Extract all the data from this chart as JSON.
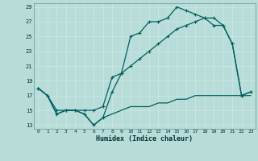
{
  "xlabel": "Humidex (Indice chaleur)",
  "xlim": [
    -0.5,
    23.5
  ],
  "ylim": [
    12.5,
    29.5
  ],
  "xticks": [
    0,
    1,
    2,
    3,
    4,
    5,
    6,
    7,
    8,
    9,
    10,
    11,
    12,
    13,
    14,
    15,
    16,
    17,
    18,
    19,
    20,
    21,
    22,
    23
  ],
  "yticks": [
    13,
    15,
    17,
    19,
    21,
    23,
    25,
    27,
    29
  ],
  "bg_color": "#b8dcd8",
  "grid_color": "#c8e8e4",
  "line_color": "#006060",
  "line1_x": [
    0,
    1,
    2,
    3,
    4,
    5,
    6,
    7,
    8,
    9,
    10,
    11,
    12,
    13,
    14,
    15,
    16,
    17,
    18,
    19,
    20,
    21,
    22,
    23
  ],
  "line1_y": [
    18.0,
    17.0,
    14.5,
    15.0,
    15.0,
    14.5,
    13.0,
    14.0,
    17.5,
    20.0,
    25.0,
    25.5,
    27.0,
    27.0,
    27.5,
    29.0,
    28.5,
    28.0,
    27.5,
    27.5,
    26.5,
    24.0,
    17.0,
    17.5
  ],
  "line2_x": [
    0,
    1,
    2,
    3,
    4,
    5,
    6,
    7,
    8,
    9,
    10,
    11,
    12,
    13,
    14,
    15,
    16,
    17,
    18,
    19,
    20,
    21,
    22,
    23
  ],
  "line2_y": [
    18.0,
    17.0,
    15.0,
    15.0,
    15.0,
    15.0,
    15.0,
    15.5,
    19.5,
    20.0,
    21.0,
    22.0,
    23.0,
    24.0,
    25.0,
    26.0,
    26.5,
    27.0,
    27.5,
    26.5,
    26.5,
    24.0,
    17.0,
    17.5
  ],
  "line3_x": [
    0,
    1,
    2,
    3,
    4,
    5,
    6,
    7,
    8,
    9,
    10,
    11,
    12,
    13,
    14,
    15,
    16,
    17,
    18,
    19,
    20,
    21,
    22,
    23
  ],
  "line3_y": [
    18.0,
    17.0,
    14.5,
    15.0,
    15.0,
    14.5,
    13.0,
    14.0,
    14.5,
    15.0,
    15.5,
    15.5,
    15.5,
    16.0,
    16.0,
    16.5,
    16.5,
    17.0,
    17.0,
    17.0,
    17.0,
    17.0,
    17.0,
    17.0
  ]
}
